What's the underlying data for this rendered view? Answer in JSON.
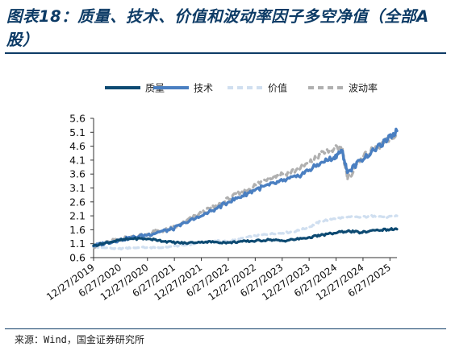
{
  "title": "图表18：质量、技术、价值和波动率因子多空净值（全部A股）",
  "source": "来源：Wind，国金证券研究所",
  "chart_data": {
    "type": "line",
    "title": "图表18：质量、技术、价值和波动率因子多空净值（全部A股）",
    "xlabel": "",
    "ylabel": "",
    "ylim": [
      0.6,
      5.6
    ],
    "yticks": [
      "0.6",
      "1.1",
      "1.6",
      "2.1",
      "2.6",
      "3.1",
      "3.6",
      "4.1",
      "4.6",
      "5.1",
      "5.6"
    ],
    "x_ticks": [
      "12/27/2019",
      "6/27/2020",
      "12/27/2020",
      "6/27/2021",
      "12/27/2021",
      "6/27/2022",
      "12/27/2022",
      "6/27/2023",
      "12/27/2023",
      "6/27/2024",
      "12/27/2024",
      "6/27/2025"
    ],
    "x_range_years": [
      2019.99,
      2025.62
    ],
    "legend_position": "top",
    "grid": false,
    "x_unit": "year",
    "series": [
      {
        "name": "质量",
        "color": "#0d4a72",
        "style": "solid",
        "x": [
          2019.99,
          2020.2,
          2020.45,
          2020.7,
          2021.0,
          2021.2,
          2021.45,
          2021.7,
          2022.0,
          2022.25,
          2022.5,
          2022.75,
          2023.0,
          2023.25,
          2023.5,
          2023.75,
          2024.0,
          2024.2,
          2024.45,
          2024.7,
          2024.95,
          2025.2,
          2025.45,
          2025.62
        ],
        "values": [
          1.03,
          1.12,
          1.22,
          1.28,
          1.28,
          1.22,
          1.15,
          1.12,
          1.17,
          1.16,
          1.14,
          1.18,
          1.2,
          1.24,
          1.2,
          1.26,
          1.33,
          1.4,
          1.48,
          1.55,
          1.5,
          1.58,
          1.61,
          1.62
        ]
      },
      {
        "name": "技术",
        "color": "#4a7fc1",
        "style": "solid",
        "x": [
          2019.99,
          2020.2,
          2020.45,
          2020.7,
          2021.0,
          2021.2,
          2021.45,
          2021.7,
          2022.0,
          2022.25,
          2022.5,
          2022.75,
          2023.0,
          2023.25,
          2023.5,
          2023.75,
          2024.0,
          2024.2,
          2024.45,
          2024.6,
          2024.7,
          2024.95,
          2025.2,
          2025.45,
          2025.62
        ],
        "values": [
          1.02,
          1.12,
          1.22,
          1.32,
          1.42,
          1.52,
          1.62,
          1.85,
          2.1,
          2.35,
          2.6,
          2.82,
          3.05,
          3.2,
          3.35,
          3.5,
          3.75,
          4.0,
          4.2,
          4.45,
          3.65,
          4.1,
          4.45,
          4.85,
          5.15
        ]
      },
      {
        "name": "价值",
        "color": "#d0dff0",
        "style": "dash",
        "x": [
          2019.99,
          2020.2,
          2020.45,
          2020.7,
          2021.0,
          2021.2,
          2021.45,
          2021.7,
          2022.0,
          2022.25,
          2022.5,
          2022.75,
          2023.0,
          2023.25,
          2023.5,
          2023.75,
          2024.0,
          2024.2,
          2024.45,
          2024.7,
          2024.95,
          2025.2,
          2025.45,
          2025.62
        ],
        "values": [
          0.98,
          0.95,
          0.92,
          0.95,
          0.97,
          0.95,
          1.0,
          1.05,
          1.15,
          1.2,
          1.18,
          1.3,
          1.38,
          1.45,
          1.48,
          1.55,
          1.7,
          1.9,
          2.0,
          2.05,
          2.05,
          2.1,
          2.05,
          2.1
        ]
      },
      {
        "name": "波动率",
        "color": "#b0b0b0",
        "style": "dash",
        "x": [
          2019.99,
          2020.2,
          2020.45,
          2020.7,
          2021.0,
          2021.2,
          2021.45,
          2021.7,
          2022.0,
          2022.25,
          2022.5,
          2022.75,
          2023.0,
          2023.25,
          2023.5,
          2023.75,
          2024.0,
          2024.2,
          2024.45,
          2024.6,
          2024.7,
          2024.95,
          2025.2,
          2025.45,
          2025.62
        ],
        "values": [
          1.0,
          1.12,
          1.25,
          1.35,
          1.45,
          1.55,
          1.65,
          1.9,
          2.2,
          2.45,
          2.7,
          2.95,
          3.2,
          3.5,
          3.6,
          3.75,
          4.0,
          4.3,
          4.5,
          4.55,
          3.4,
          4.15,
          4.5,
          4.8,
          5.0
        ]
      }
    ]
  }
}
